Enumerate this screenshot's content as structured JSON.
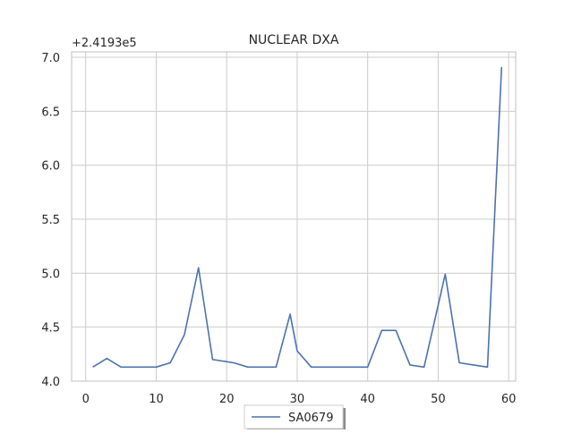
{
  "chart_data": {
    "type": "line",
    "title": "NUCLEAR DXA",
    "xlabel": "",
    "ylabel": "",
    "y_offset_label": "+2.4193e5",
    "xlim": [
      -2,
      61
    ],
    "ylim": [
      4.0,
      7.05
    ],
    "x_ticks": [
      0,
      10,
      20,
      30,
      40,
      50,
      60
    ],
    "y_ticks": [
      4.0,
      4.5,
      5.0,
      5.5,
      6.0,
      6.5,
      7.0
    ],
    "x_tick_labels": [
      "0",
      "10",
      "20",
      "30",
      "40",
      "50",
      "60"
    ],
    "y_tick_labels": [
      "4.0",
      "4.5",
      "5.0",
      "5.5",
      "6.0",
      "6.5",
      "7.0"
    ],
    "grid": true,
    "legend_position": "bottom-center",
    "series": [
      {
        "name": "SA0679",
        "color": "#4c72b0",
        "x": [
          1,
          3,
          5,
          7,
          10,
          12,
          14,
          16,
          18,
          21,
          23,
          25,
          27,
          29,
          30,
          32,
          34,
          36,
          38,
          40,
          42,
          44,
          46,
          48,
          51,
          53,
          55,
          57,
          59
        ],
        "y": [
          4.13,
          4.21,
          4.13,
          4.13,
          4.13,
          4.17,
          4.43,
          5.05,
          4.2,
          4.17,
          4.13,
          4.13,
          4.13,
          4.62,
          4.28,
          4.13,
          4.13,
          4.13,
          4.13,
          4.13,
          4.47,
          4.47,
          4.15,
          4.13,
          4.99,
          4.17,
          4.15,
          4.13,
          6.91
        ]
      }
    ]
  }
}
